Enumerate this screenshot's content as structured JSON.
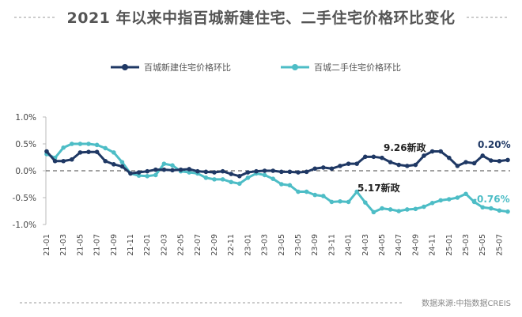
{
  "title": "2021 年以来中指百城新建住宅、二手住宅价格环比变化",
  "source": "数据来源:中指数据CREIS",
  "colors": {
    "new": "#1f3864",
    "second": "#4dbdc6"
  },
  "chart_data": {
    "type": "line",
    "title": "2021 年以来中指百城新建住宅、二手住宅价格环比变化",
    "legend_position": "top",
    "ylim": [
      -1.0,
      1.0
    ],
    "yticks": [
      "1.0%",
      "0.5%",
      "0.0%",
      "-0.5%",
      "-1.0%"
    ],
    "ytick_values": [
      1.0,
      0.5,
      0.0,
      -0.5,
      -1.0
    ],
    "xtick_labels": [
      "21-01",
      "21-03",
      "21-05",
      "21-07",
      "21-09",
      "21-11",
      "22-01",
      "22-03",
      "22-05",
      "22-07",
      "22-09",
      "22-11",
      "23-01",
      "23-03",
      "23-05",
      "23-05",
      "23-09",
      "23-11",
      "24-01",
      "24-03",
      "24-05",
      "24-07",
      "24-09",
      "24-11",
      "25-01",
      "25-03",
      "25-05",
      "25-07"
    ],
    "x_start": "21-01",
    "x_end": "25-08",
    "zero_line": "dashed",
    "series": [
      {
        "name": "百城新建住宅价格环比",
        "color": "#1f3864",
        "values": [
          0.36,
          0.18,
          0.18,
          0.21,
          0.34,
          0.35,
          0.35,
          0.18,
          0.12,
          0.08,
          -0.05,
          -0.03,
          -0.01,
          0.02,
          0.02,
          0.01,
          0.02,
          0.03,
          -0.01,
          -0.02,
          -0.03,
          -0.01,
          -0.06,
          -0.1,
          -0.03,
          -0.01,
          0.0,
          0.0,
          -0.02,
          -0.02,
          -0.03,
          -0.02,
          0.04,
          0.06,
          0.04,
          0.09,
          0.13,
          0.13,
          0.26,
          0.26,
          0.24,
          0.16,
          0.11,
          0.09,
          0.11,
          0.28,
          0.36,
          0.36,
          0.24,
          0.09,
          0.16,
          0.14,
          0.28,
          0.19,
          0.18,
          0.2
        ]
      },
      {
        "name": "百城二手住宅价格环比",
        "color": "#4dbdc6",
        "values": [
          0.31,
          0.24,
          0.43,
          0.5,
          0.5,
          0.5,
          0.48,
          0.42,
          0.34,
          0.16,
          -0.05,
          -0.09,
          -0.1,
          -0.08,
          0.13,
          0.1,
          -0.01,
          -0.03,
          -0.05,
          -0.13,
          -0.16,
          -0.16,
          -0.21,
          -0.24,
          -0.13,
          -0.05,
          -0.08,
          -0.15,
          -0.25,
          -0.27,
          -0.39,
          -0.39,
          -0.45,
          -0.47,
          -0.58,
          -0.57,
          -0.58,
          -0.39,
          -0.59,
          -0.77,
          -0.7,
          -0.72,
          -0.75,
          -0.72,
          -0.71,
          -0.67,
          -0.6,
          -0.55,
          -0.53,
          -0.5,
          -0.43,
          -0.58,
          -0.68,
          -0.7,
          -0.74,
          -0.76
        ]
      }
    ],
    "annotations": [
      {
        "text": "9.26新政",
        "x": "24-09"
      },
      {
        "text": "5.17新政",
        "x": "24-03"
      },
      {
        "text": "0.20%",
        "series": "百城新建住宅价格环比"
      },
      {
        "text": "-0.76%",
        "series": "百城二手住宅价格环比"
      }
    ]
  }
}
